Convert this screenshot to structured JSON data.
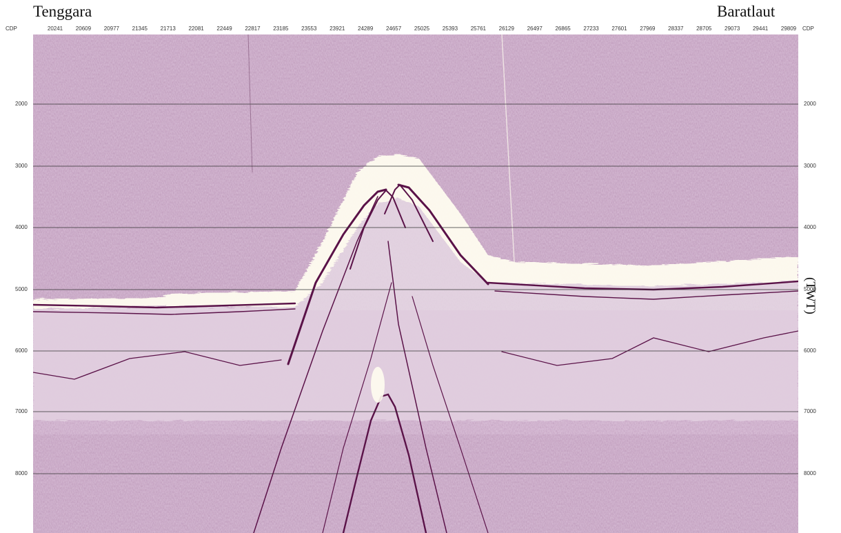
{
  "labels": {
    "left_direction": "Tenggara",
    "right_direction": "Baratlaut",
    "axis_unit": "(TWT)",
    "cdp_left": "CDP",
    "cdp_right": "CDP"
  },
  "cdp_ticks": [
    "20241",
    "20609",
    "20977",
    "21345",
    "21713",
    "22081",
    "22449",
    "22817",
    "23185",
    "23553",
    "23921",
    "24289",
    "24657",
    "25025",
    "25393",
    "25761",
    "26129",
    "26497",
    "26865",
    "27233",
    "27601",
    "27969",
    "28337",
    "28705",
    "29073",
    "29441",
    "29809"
  ],
  "twt_ticks": [
    "2000",
    "3000",
    "4000",
    "5000",
    "6000",
    "7000",
    "8000"
  ],
  "colors": {
    "background_noise": "#b78fb3",
    "reflector": "#5a1248",
    "water_layer": "#fffdf0",
    "gridline": "#333333"
  }
}
